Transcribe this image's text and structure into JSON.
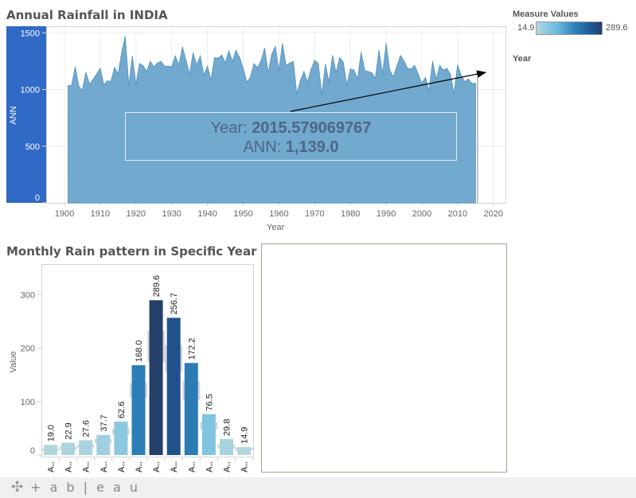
{
  "annual": {
    "title": "Annual Rainfall in INDIA",
    "ylabel": "ANN",
    "xlabel": "Year",
    "y_ticks": [
      "0",
      "500",
      "1000",
      "1500"
    ],
    "x_ticks": [
      "1900",
      "1910",
      "1920",
      "1930",
      "1940",
      "1950",
      "1960",
      "1970",
      "1980",
      "1990",
      "2000",
      "2010",
      "2020"
    ],
    "annotation": {
      "year_label": "Year: ",
      "year_value": "2015.579069767",
      "ann_label": "ANN: ",
      "ann_value": "1,139.0"
    },
    "colors": {
      "axis_band": "#3169c6",
      "area": "#72a9cf",
      "line": "#5a96c6"
    }
  },
  "chart_data": [
    {
      "type": "area",
      "title": "Annual Rainfall in INDIA",
      "xlabel": "Year",
      "ylabel": "ANN",
      "xlim": [
        1895,
        2022
      ],
      "ylim": [
        0,
        1550
      ],
      "grid": true,
      "x": [
        1901,
        1902,
        1903,
        1904,
        1905,
        1906,
        1907,
        1908,
        1909,
        1910,
        1911,
        1912,
        1913,
        1914,
        1915,
        1916,
        1917,
        1918,
        1919,
        1920,
        1921,
        1922,
        1923,
        1924,
        1925,
        1926,
        1927,
        1928,
        1929,
        1930,
        1931,
        1932,
        1933,
        1934,
        1935,
        1936,
        1937,
        1938,
        1939,
        1940,
        1941,
        1942,
        1943,
        1944,
        1945,
        1946,
        1947,
        1948,
        1949,
        1950,
        1951,
        1952,
        1953,
        1954,
        1955,
        1956,
        1957,
        1958,
        1959,
        1960,
        1961,
        1962,
        1963,
        1964,
        1965,
        1966,
        1967,
        1968,
        1969,
        1970,
        1971,
        1972,
        1973,
        1974,
        1975,
        1976,
        1977,
        1978,
        1979,
        1980,
        1981,
        1982,
        1983,
        1984,
        1985,
        1986,
        1987,
        1988,
        1989,
        1990,
        1991,
        1992,
        1993,
        1994,
        1995,
        1996,
        1997,
        1998,
        1999,
        2000,
        2001,
        2002,
        2003,
        2004,
        2005,
        2006,
        2007,
        2008,
        2009,
        2010,
        2011,
        2012,
        2013,
        2014,
        2015
      ],
      "values": [
        1034,
        1036,
        1198,
        1029,
        990,
        1151,
        1046,
        1088,
        1137,
        1186,
        1041,
        1076,
        1071,
        1193,
        1135,
        1322,
        1467,
        1029,
        1291,
        1041,
        1228,
        1209,
        1158,
        1247,
        1198,
        1233,
        1247,
        1205,
        1205,
        1200,
        1294,
        1216,
        1373,
        1256,
        1135,
        1322,
        1214,
        1294,
        1123,
        1205,
        1083,
        1280,
        1275,
        1303,
        1235,
        1338,
        1247,
        1345,
        1280,
        1186,
        1064,
        1106,
        1228,
        1193,
        1252,
        1364,
        1146,
        1310,
        1378,
        1163,
        1404,
        1209,
        1233,
        1247,
        959,
        1076,
        1158,
        1064,
        1177,
        1256,
        1228,
        952,
        1221,
        1064,
        1298,
        1146,
        1279,
        1240,
        1036,
        1181,
        1170,
        1092,
        1326,
        1165,
        1158,
        1146,
        1099,
        1345,
        1134,
        1404,
        1170,
        1111,
        1205,
        1298,
        1251,
        1186,
        1181,
        1212,
        1134,
        1053,
        1106,
        987,
        1247,
        1088,
        1212,
        1170,
        1186,
        1134,
        959,
        1216,
        1123,
        1069,
        1092,
        1053,
        1053
      ]
    },
    {
      "type": "bar",
      "title": "Monthly Rain pattern in Specific Year",
      "ylabel": "Value",
      "ylim": [
        0,
        350
      ],
      "y_ticks": [
        "0",
        "100",
        "200",
        "300"
      ],
      "categories": [
        "A..",
        "A..",
        "A..",
        "A..",
        "A..",
        "A..",
        "A..",
        "A..",
        "A..",
        "A..",
        "A..",
        "A.."
      ],
      "values": [
        19.0,
        22.9,
        27.6,
        37.7,
        62.6,
        168.0,
        289.6,
        256.7,
        172.2,
        76.5,
        29.8,
        14.9
      ],
      "value_labels": [
        "19.0",
        "22.9",
        "27.6",
        "37.7",
        "62.6",
        "168.0",
        "289.6",
        "256.7",
        "172.2",
        "76.5",
        "29.8",
        "14.9"
      ],
      "reference_bands": [
        [
          8,
          12
        ],
        [
          10,
          16
        ],
        [
          14,
          20
        ],
        [
          22,
          30
        ],
        [
          38,
          50
        ],
        [
          107,
          135
        ],
        [
          174,
          232
        ],
        [
          156,
          205
        ],
        [
          104,
          138
        ],
        [
          48,
          62
        ],
        [
          12,
          20
        ],
        [
          8,
          14
        ]
      ]
    }
  ],
  "monthly": {
    "title": "Monthly Rain pattern in Specific Year"
  },
  "legend": {
    "title": "Measure Values",
    "min": "14.9",
    "max": "289.6",
    "year_title": "Year"
  },
  "footer": {
    "logo": "+ a b | e a u"
  }
}
